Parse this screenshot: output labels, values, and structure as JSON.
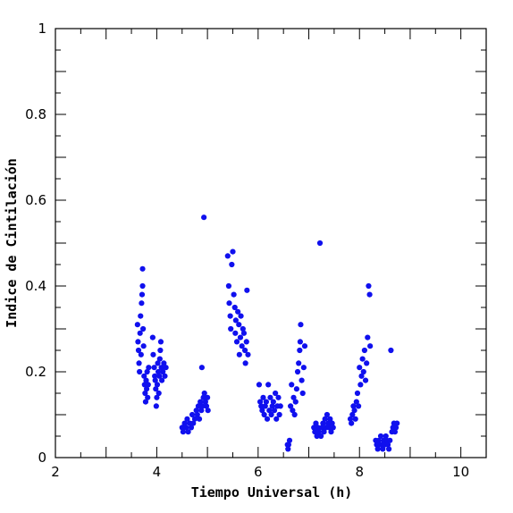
{
  "chart_data": {
    "type": "scatter",
    "title": "",
    "xlabel": "Tiempo Universal (h)",
    "ylabel": "Indice de Cintilación",
    "xlim": [
      2,
      10.5
    ],
    "ylim": [
      0,
      1
    ],
    "x_ticks": [
      2,
      4,
      6,
      8,
      10
    ],
    "y_ticks": [
      0,
      0.2,
      0.4,
      0.6,
      0.8,
      1
    ],
    "x_tick_labels": [
      "2",
      "4",
      "6",
      "8",
      "10"
    ],
    "y_tick_labels": [
      "0",
      "0.2",
      "0.4",
      "0.6",
      "0.8",
      "1"
    ],
    "grid": false,
    "legend": "none",
    "marker_color": "#1010ee",
    "series": [
      {
        "points": [
          [
            3.62,
            0.31
          ],
          [
            3.63,
            0.27
          ],
          [
            3.64,
            0.25
          ],
          [
            3.65,
            0.22
          ],
          [
            3.66,
            0.2
          ],
          [
            3.67,
            0.29
          ],
          [
            3.68,
            0.33
          ],
          [
            3.69,
            0.24
          ],
          [
            3.7,
            0.36
          ],
          [
            3.71,
            0.38
          ],
          [
            3.72,
            0.4
          ],
          [
            3.72,
            0.44
          ],
          [
            3.73,
            0.3
          ],
          [
            3.74,
            0.26
          ],
          [
            3.75,
            0.19
          ],
          [
            3.76,
            0.17
          ],
          [
            3.77,
            0.15
          ],
          [
            3.78,
            0.13
          ],
          [
            3.79,
            0.18
          ],
          [
            3.8,
            0.16
          ],
          [
            3.81,
            0.2
          ],
          [
            3.82,
            0.14
          ],
          [
            3.83,
            0.17
          ],
          [
            3.84,
            0.21
          ],
          [
            3.92,
            0.28
          ],
          [
            3.93,
            0.24
          ],
          [
            3.95,
            0.21
          ],
          [
            3.96,
            0.19
          ],
          [
            3.97,
            0.18
          ],
          [
            3.98,
            0.16
          ],
          [
            3.99,
            0.12
          ],
          [
            4.0,
            0.14
          ],
          [
            4.01,
            0.17
          ],
          [
            4.02,
            0.22
          ],
          [
            4.03,
            0.2
          ],
          [
            4.04,
            0.15
          ],
          [
            4.05,
            0.19
          ],
          [
            4.06,
            0.23
          ],
          [
            4.07,
            0.25
          ],
          [
            4.08,
            0.27
          ],
          [
            4.09,
            0.21
          ],
          [
            4.1,
            0.18
          ],
          [
            4.12,
            0.2
          ],
          [
            4.14,
            0.22
          ],
          [
            4.16,
            0.19
          ],
          [
            4.18,
            0.21
          ],
          [
            4.5,
            0.07
          ],
          [
            4.52,
            0.06
          ],
          [
            4.55,
            0.08
          ],
          [
            4.58,
            0.07
          ],
          [
            4.6,
            0.09
          ],
          [
            4.62,
            0.06
          ],
          [
            4.65,
            0.08
          ],
          [
            4.68,
            0.07
          ],
          [
            4.7,
            0.1
          ],
          [
            4.72,
            0.08
          ],
          [
            4.75,
            0.09
          ],
          [
            4.78,
            0.11
          ],
          [
            4.8,
            0.1
          ],
          [
            4.82,
            0.12
          ],
          [
            4.84,
            0.09
          ],
          [
            4.86,
            0.13
          ],
          [
            4.88,
            0.11
          ],
          [
            4.89,
            0.21
          ],
          [
            4.9,
            0.12
          ],
          [
            4.92,
            0.14
          ],
          [
            4.93,
            0.56
          ],
          [
            4.94,
            0.15
          ],
          [
            4.96,
            0.13
          ],
          [
            4.98,
            0.12
          ],
          [
            5.0,
            0.14
          ],
          [
            5.01,
            0.11
          ],
          [
            5.4,
            0.47
          ],
          [
            5.42,
            0.4
          ],
          [
            5.43,
            0.36
          ],
          [
            5.45,
            0.33
          ],
          [
            5.46,
            0.3
          ],
          [
            5.48,
            0.45
          ],
          [
            5.5,
            0.48
          ],
          [
            5.52,
            0.38
          ],
          [
            5.54,
            0.35
          ],
          [
            5.55,
            0.29
          ],
          [
            5.56,
            0.32
          ],
          [
            5.58,
            0.27
          ],
          [
            5.6,
            0.34
          ],
          [
            5.62,
            0.31
          ],
          [
            5.63,
            0.24
          ],
          [
            5.65,
            0.28
          ],
          [
            5.66,
            0.33
          ],
          [
            5.68,
            0.26
          ],
          [
            5.7,
            0.3
          ],
          [
            5.72,
            0.29
          ],
          [
            5.74,
            0.25
          ],
          [
            5.75,
            0.22
          ],
          [
            5.77,
            0.27
          ],
          [
            5.78,
            0.39
          ],
          [
            5.8,
            0.24
          ],
          [
            6.02,
            0.17
          ],
          [
            6.04,
            0.13
          ],
          [
            6.06,
            0.12
          ],
          [
            6.08,
            0.11
          ],
          [
            6.1,
            0.14
          ],
          [
            6.12,
            0.1
          ],
          [
            6.14,
            0.12
          ],
          [
            6.16,
            0.13
          ],
          [
            6.18,
            0.09
          ],
          [
            6.2,
            0.17
          ],
          [
            6.22,
            0.11
          ],
          [
            6.24,
            0.14
          ],
          [
            6.26,
            0.1
          ],
          [
            6.28,
            0.12
          ],
          [
            6.3,
            0.13
          ],
          [
            6.32,
            0.11
          ],
          [
            6.34,
            0.15
          ],
          [
            6.36,
            0.09
          ],
          [
            6.38,
            0.12
          ],
          [
            6.4,
            0.14
          ],
          [
            6.42,
            0.1
          ],
          [
            6.44,
            0.12
          ],
          [
            6.58,
            0.03
          ],
          [
            6.59,
            0.02
          ],
          [
            6.6,
            0.03
          ],
          [
            6.62,
            0.04
          ],
          [
            6.64,
            0.12
          ],
          [
            6.66,
            0.17
          ],
          [
            6.68,
            0.11
          ],
          [
            6.7,
            0.14
          ],
          [
            6.72,
            0.1
          ],
          [
            6.74,
            0.13
          ],
          [
            6.76,
            0.16
          ],
          [
            6.78,
            0.2
          ],
          [
            6.8,
            0.22
          ],
          [
            6.82,
            0.25
          ],
          [
            6.83,
            0.27
          ],
          [
            6.84,
            0.31
          ],
          [
            6.86,
            0.18
          ],
          [
            6.88,
            0.15
          ],
          [
            6.9,
            0.21
          ],
          [
            6.92,
            0.26
          ],
          [
            7.1,
            0.07
          ],
          [
            7.12,
            0.06
          ],
          [
            7.14,
            0.08
          ],
          [
            7.16,
            0.05
          ],
          [
            7.18,
            0.07
          ],
          [
            7.2,
            0.06
          ],
          [
            7.22,
            0.5
          ],
          [
            7.24,
            0.05
          ],
          [
            7.26,
            0.07
          ],
          [
            7.28,
            0.08
          ],
          [
            7.3,
            0.06
          ],
          [
            7.32,
            0.09
          ],
          [
            7.34,
            0.07
          ],
          [
            7.36,
            0.1
          ],
          [
            7.38,
            0.08
          ],
          [
            7.4,
            0.07
          ],
          [
            7.42,
            0.09
          ],
          [
            7.44,
            0.06
          ],
          [
            7.46,
            0.08
          ],
          [
            7.48,
            0.07
          ],
          [
            7.82,
            0.09
          ],
          [
            7.84,
            0.08
          ],
          [
            7.86,
            0.1
          ],
          [
            7.88,
            0.12
          ],
          [
            7.9,
            0.11
          ],
          [
            7.92,
            0.09
          ],
          [
            7.94,
            0.13
          ],
          [
            7.96,
            0.15
          ],
          [
            7.98,
            0.12
          ],
          [
            8.0,
            0.21
          ],
          [
            8.02,
            0.17
          ],
          [
            8.04,
            0.19
          ],
          [
            8.06,
            0.23
          ],
          [
            8.08,
            0.2
          ],
          [
            8.1,
            0.25
          ],
          [
            8.12,
            0.18
          ],
          [
            8.14,
            0.22
          ],
          [
            8.16,
            0.28
          ],
          [
            8.18,
            0.4
          ],
          [
            8.2,
            0.38
          ],
          [
            8.21,
            0.26
          ],
          [
            8.32,
            0.04
          ],
          [
            8.34,
            0.03
          ],
          [
            8.36,
            0.02
          ],
          [
            8.38,
            0.04
          ],
          [
            8.4,
            0.03
          ],
          [
            8.42,
            0.05
          ],
          [
            8.44,
            0.03
          ],
          [
            8.46,
            0.02
          ],
          [
            8.48,
            0.04
          ],
          [
            8.5,
            0.03
          ],
          [
            8.52,
            0.05
          ],
          [
            8.54,
            0.04
          ],
          [
            8.56,
            0.03
          ],
          [
            8.58,
            0.02
          ],
          [
            8.6,
            0.04
          ],
          [
            8.62,
            0.25
          ],
          [
            8.64,
            0.06
          ],
          [
            8.66,
            0.07
          ],
          [
            8.68,
            0.08
          ],
          [
            8.7,
            0.06
          ],
          [
            8.72,
            0.07
          ],
          [
            8.74,
            0.08
          ]
        ]
      }
    ]
  }
}
